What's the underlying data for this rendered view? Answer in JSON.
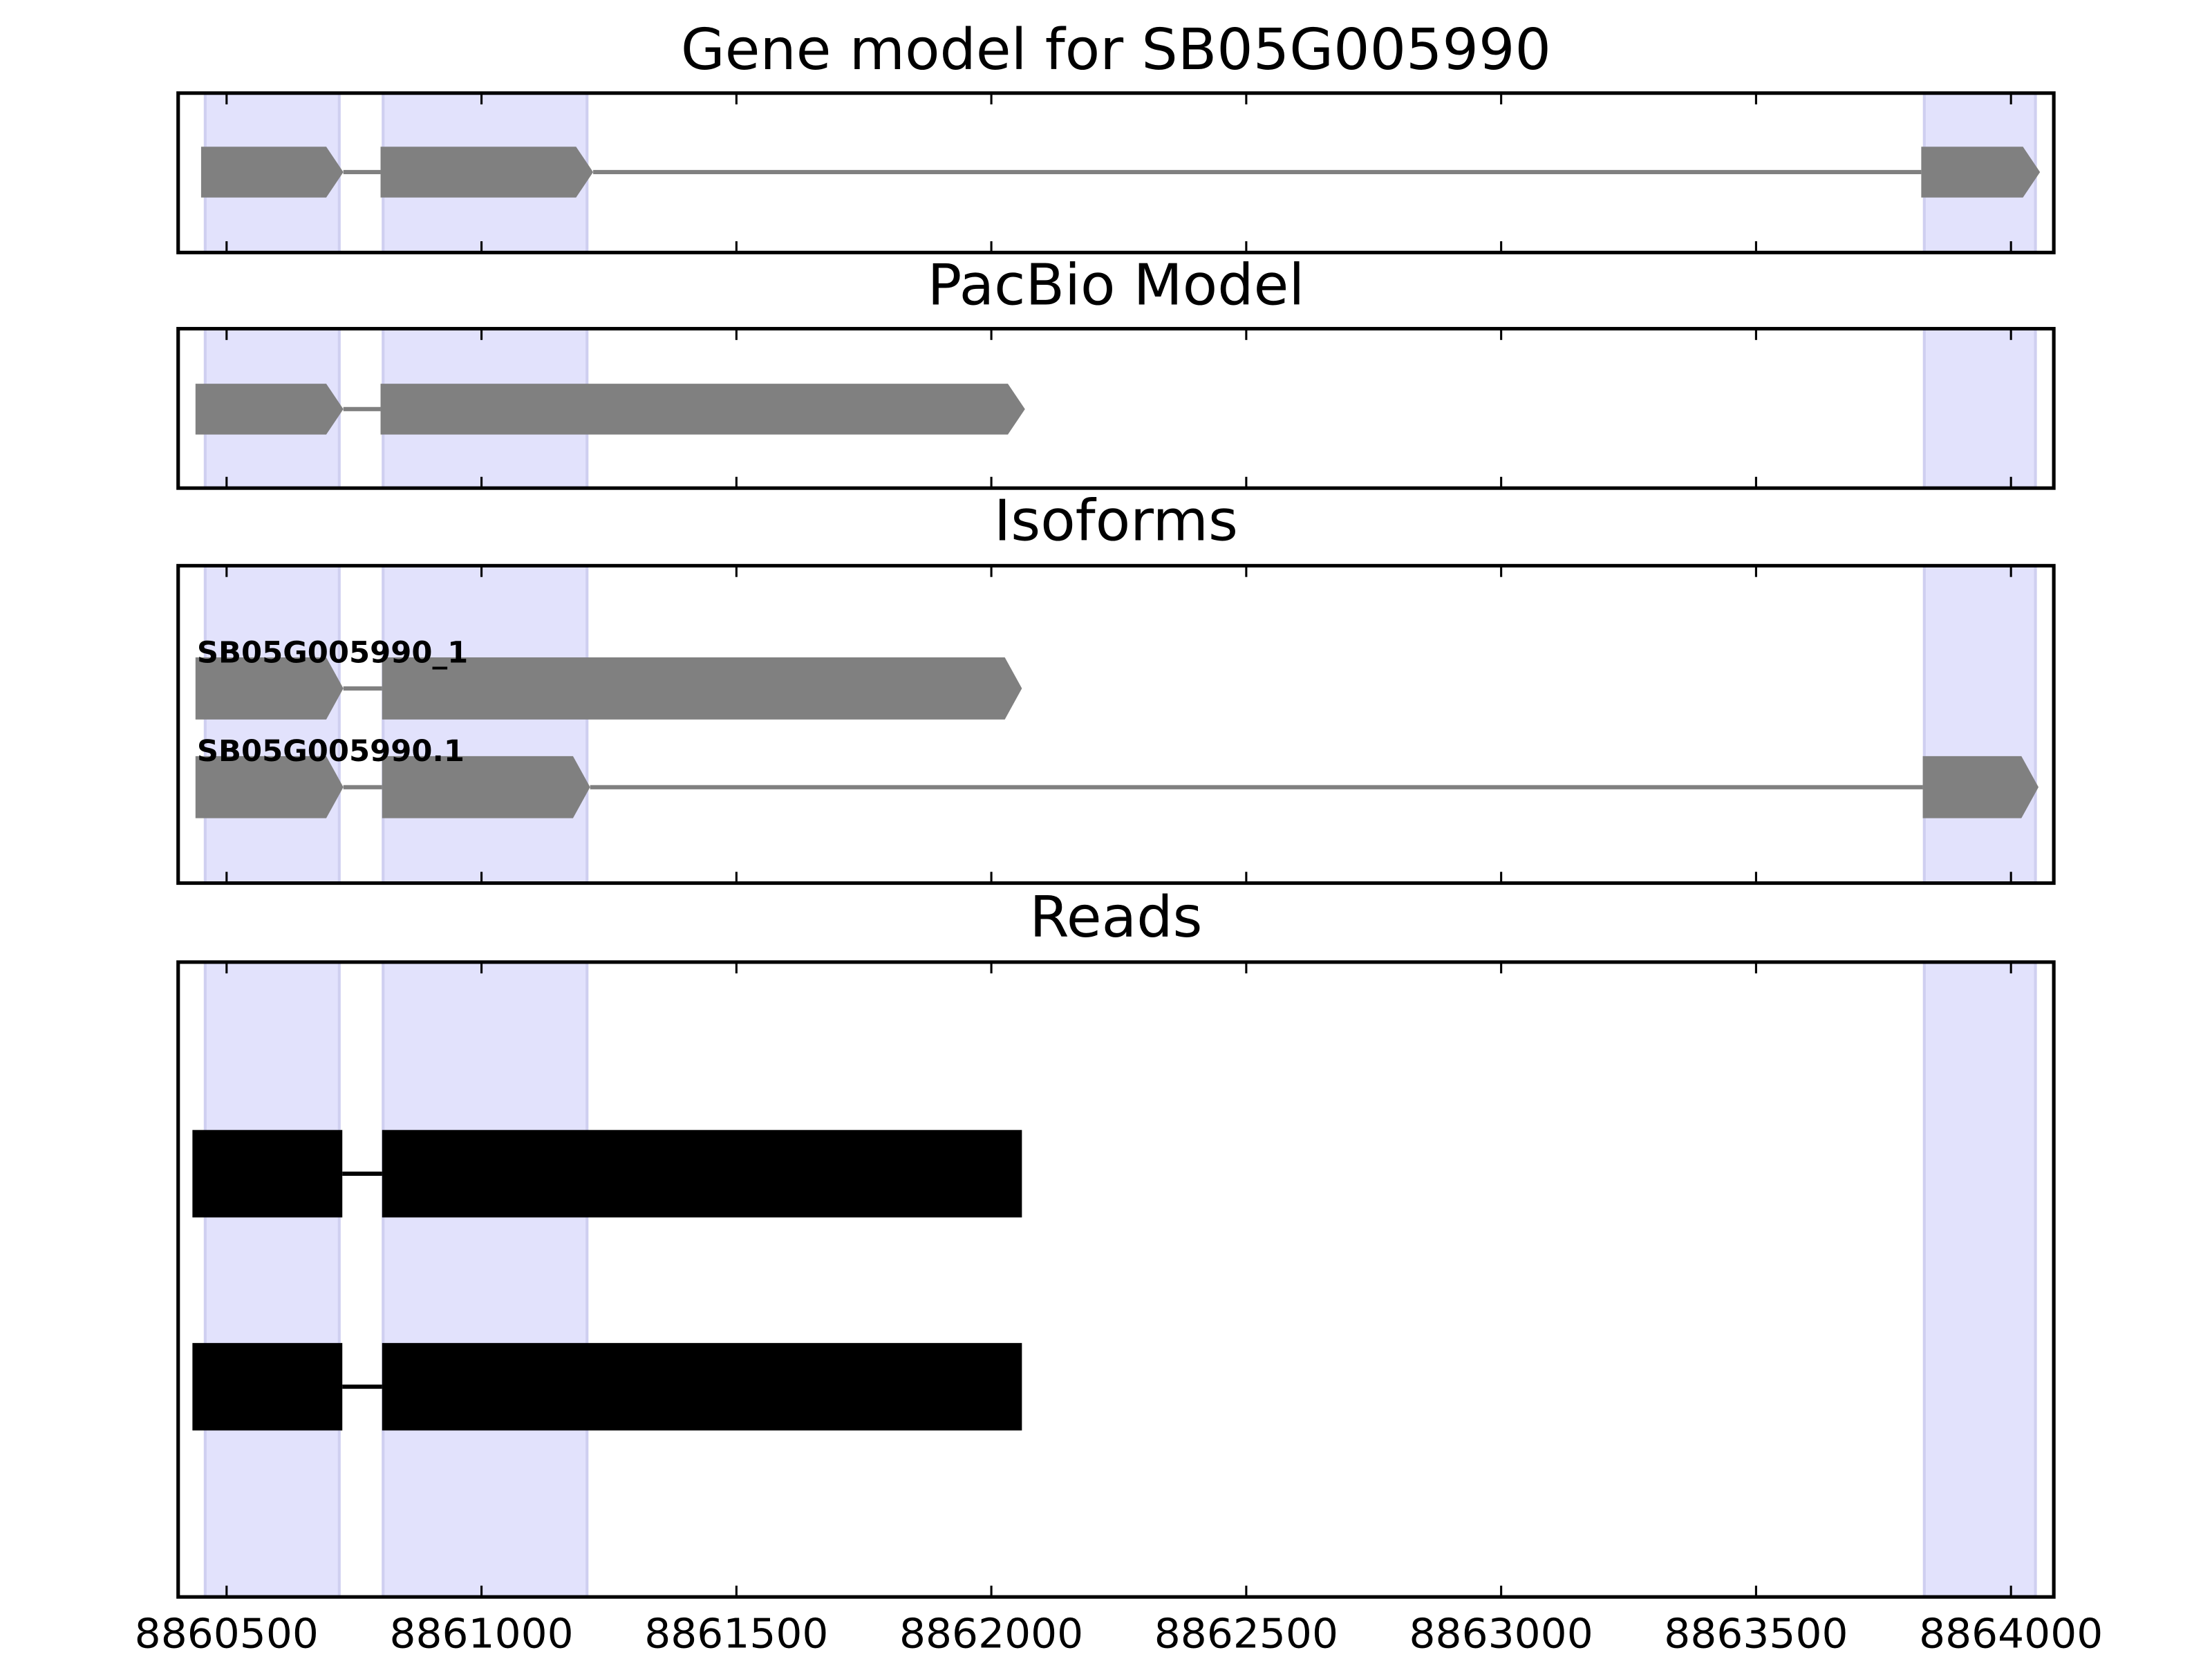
{
  "chart_data": {
    "type": "gene-model",
    "xlim": [
      8860405,
      8864084
    ],
    "xticks": [
      8860500,
      8861000,
      8861500,
      8862000,
      8862500,
      8863000,
      8863500,
      8864000
    ],
    "highlights": [
      [
        8860458,
        8860721
      ],
      [
        8860807,
        8861207
      ],
      [
        8863830,
        8864048
      ]
    ],
    "highlight_color": "#e2e2fc",
    "panels": [
      {
        "title": "Gene model for SB05G005990",
        "style": "arrow",
        "color": "#808080",
        "transcripts": [
          {
            "exons": [
              [
                8860450,
                8860729
              ],
              [
                8860802,
                8861219
              ],
              [
                8863824,
                8864057
              ]
            ]
          }
        ]
      },
      {
        "title": "PacBio Model",
        "style": "arrow",
        "color": "#808080",
        "transcripts": [
          {
            "exons": [
              [
                8860439,
                8860729
              ],
              [
                8860802,
                8862066
              ]
            ]
          }
        ]
      },
      {
        "title": "Isoforms",
        "style": "arrow",
        "color": "#808080",
        "transcripts": [
          {
            "label": "SB05G005990_1",
            "exons": [
              [
                8860439,
                8860729
              ],
              [
                8860805,
                8862060
              ]
            ]
          },
          {
            "label": "SB05G005990.1",
            "exons": [
              [
                8860439,
                8860729
              ],
              [
                8860805,
                8861213
              ],
              [
                8863827,
                8864054
              ]
            ]
          }
        ]
      },
      {
        "title": "Reads",
        "style": "block",
        "color": "#000000",
        "transcripts": [
          {
            "exons": [
              [
                8860433,
                8860727
              ],
              [
                8860805,
                8862060
              ]
            ]
          },
          {
            "exons": [
              [
                8860433,
                8860727
              ],
              [
                8860805,
                8862060
              ]
            ]
          }
        ]
      }
    ]
  }
}
